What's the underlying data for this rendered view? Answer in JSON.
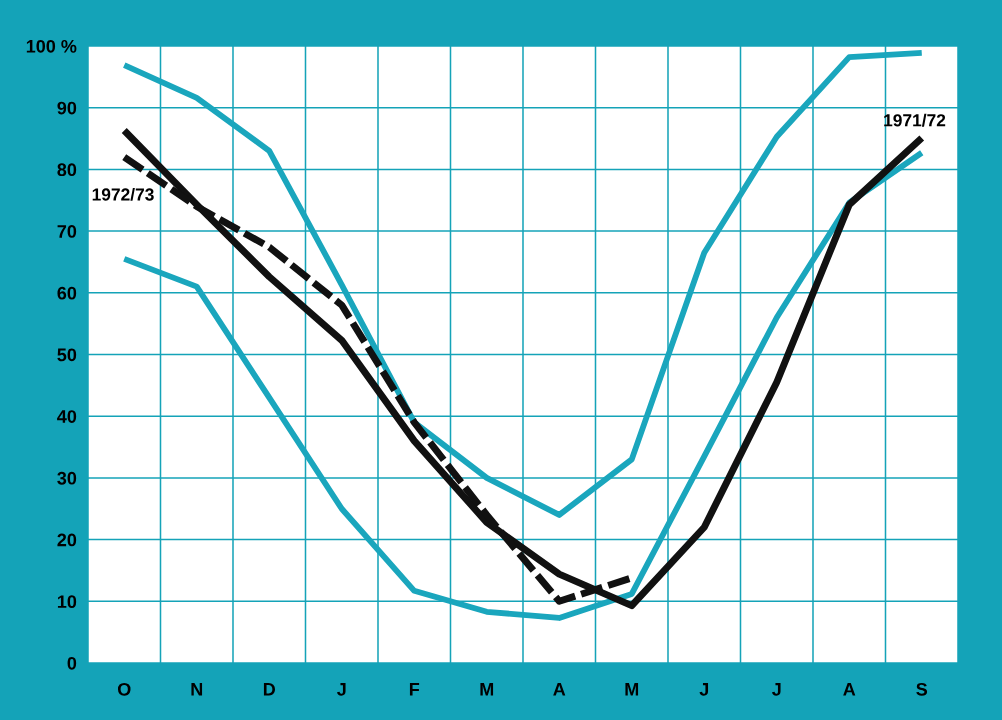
{
  "chart_data": {
    "type": "line",
    "categories": [
      "O",
      "N",
      "D",
      "J",
      "F",
      "M",
      "A",
      "M",
      "J",
      "J",
      "A",
      "S"
    ],
    "ylim": [
      0,
      100
    ],
    "yticks": [
      0,
      10,
      20,
      30,
      40,
      50,
      60,
      70,
      80,
      90,
      {
        "value": 100,
        "label": "100 %"
      }
    ],
    "grid": true,
    "marker": "none",
    "series": [
      {
        "color": "#1aa6bd",
        "line_style": "solid",
        "values": [
          96.9,
          91.6,
          83.0,
          61.3,
          39.0,
          30.0,
          24.0,
          33.0,
          66.5,
          85.3,
          98.2,
          98.9
        ]
      },
      {
        "color": "#1aa6bd",
        "line_style": "solid",
        "values": [
          65.5,
          61.0,
          43.0,
          25.0,
          11.7,
          8.3,
          7.3,
          11.2,
          33.5,
          56.0,
          74.6,
          82.7
        ]
      },
      {
        "name": "1971/72",
        "color": "#111111",
        "line_style": "solid",
        "values": [
          86.3,
          74.3,
          62.6,
          52.3,
          36.0,
          22.8,
          14.4,
          9.3,
          22.0,
          45.5,
          74.3,
          85.1
        ]
      },
      {
        "name": "1972/73",
        "color": "#111111",
        "line_style": "dashed",
        "values": [
          82.0,
          74.0,
          67.4,
          58.0,
          39.0,
          24.0,
          10.0,
          13.8,
          null,
          null,
          null,
          null
        ]
      }
    ]
  }
}
